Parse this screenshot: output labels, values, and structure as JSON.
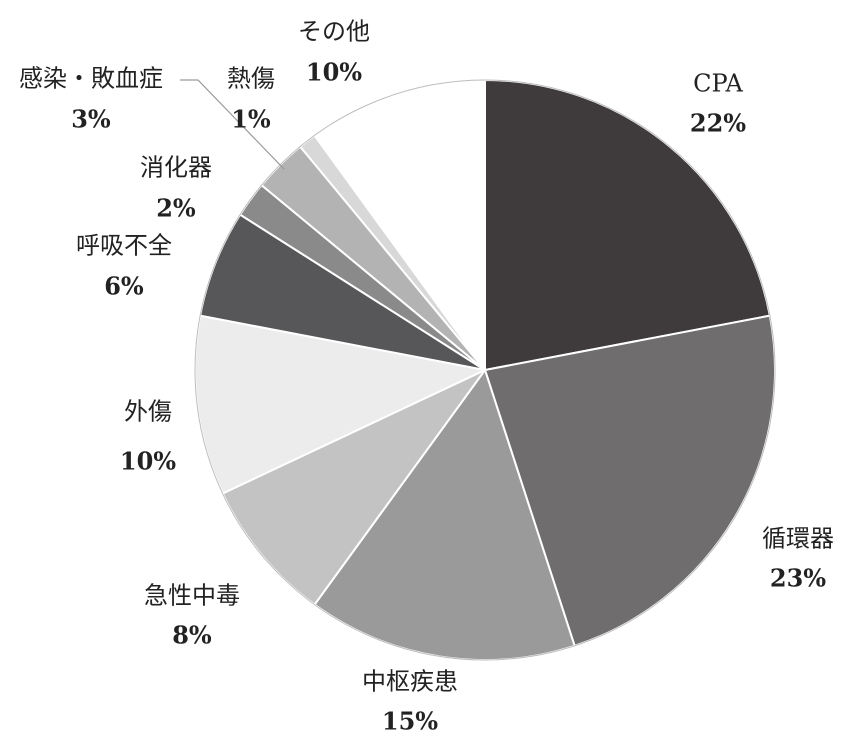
{
  "chart_data": {
    "type": "pie",
    "title": "",
    "start_angle_deg": 0,
    "direction": "clockwise",
    "slices": [
      {
        "label": "CPA",
        "value": 22,
        "value_label": "22%",
        "color": "#3f3a3b"
      },
      {
        "label": "循環器",
        "value": 23,
        "value_label": "23%",
        "color": "#6f6d6e"
      },
      {
        "label": "中枢疾患",
        "value": 15,
        "value_label": "15%",
        "color": "#9b9a9a"
      },
      {
        "label": "急性中毒",
        "value": 8,
        "value_label": "8%",
        "color": "#c4c3c3"
      },
      {
        "label": "外傷",
        "value": 10,
        "value_label": "10%",
        "color": "#ececec"
      },
      {
        "label": "呼吸不全",
        "value": 6,
        "value_label": "6%",
        "color": "#57575a"
      },
      {
        "label": "消化器",
        "value": 2,
        "value_label": "2%",
        "color": "#8a8a8a"
      },
      {
        "label": "感染・敗血症",
        "value": 3,
        "value_label": "3%",
        "color": "#b3b3b3"
      },
      {
        "label": "熱傷",
        "value": 1,
        "value_label": "1%",
        "color": "#d8d8d8"
      },
      {
        "label": "その他",
        "value": 10,
        "value_label": "10%",
        "color": "#ffffff"
      }
    ]
  }
}
